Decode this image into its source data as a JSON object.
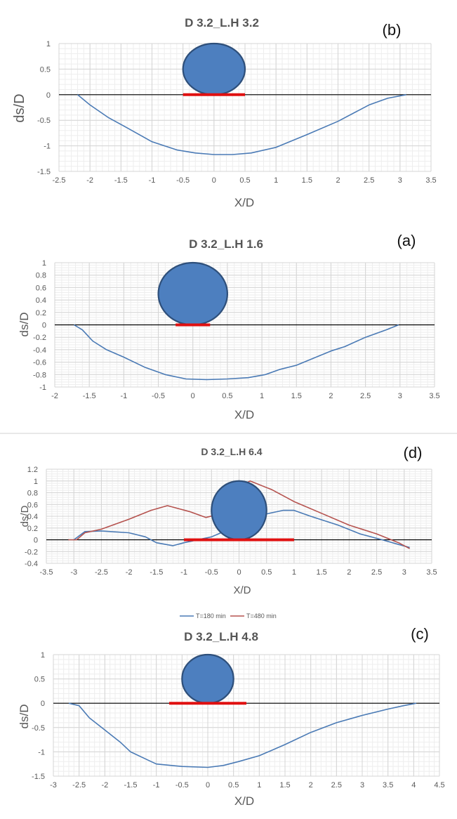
{
  "chart_data": [
    {
      "type": "line",
      "title": "D 3.2_L.H 3.2",
      "panel_label": "(b)",
      "xlabel": "X/D",
      "ylabel": "ds/D",
      "xlim": [
        -2.5,
        3.5
      ],
      "ylim": [
        -1.5,
        1
      ],
      "xticks": [
        -2.5,
        -2,
        -1.5,
        -1,
        -0.5,
        0,
        0.5,
        1,
        1.5,
        2,
        2.5,
        3,
        3.5
      ],
      "yticks": [
        -1.5,
        -1,
        -0.5,
        0,
        0.5,
        1
      ],
      "xtick_labels": [
        "-2.5",
        "-2",
        "-1.5",
        "-1",
        "-0.5",
        "0",
        "0.5",
        "1",
        "1.5",
        "2",
        "2.5",
        "3",
        "3.5"
      ],
      "ytick_labels": [
        "-1.5",
        "-1",
        "-0.5",
        "0",
        "0.5",
        "1"
      ],
      "pipe": {
        "center_x": 0,
        "center_y": 0.5,
        "diameter": 1
      },
      "mat": {
        "x_start": -0.5,
        "x_end": 0.5
      },
      "series": [
        {
          "name": "profile",
          "color": "#4a7ab5",
          "x": [
            -2.2,
            -2.0,
            -1.7,
            -1.4,
            -1.0,
            -0.6,
            -0.3,
            0.0,
            0.3,
            0.6,
            1.0,
            1.5,
            2.0,
            2.5,
            2.8,
            3.1
          ],
          "y": [
            0.0,
            -0.2,
            -0.45,
            -0.65,
            -0.92,
            -1.08,
            -1.14,
            -1.17,
            -1.17,
            -1.14,
            -1.03,
            -0.78,
            -0.52,
            -0.2,
            -0.07,
            0.0
          ]
        }
      ]
    },
    {
      "type": "line",
      "title": "D 3.2_L.H 1.6",
      "panel_label": "(a)",
      "xlabel": "X/D",
      "ylabel": "ds/D",
      "xlim": [
        -2,
        3.5
      ],
      "ylim": [
        -1,
        1
      ],
      "xticks": [
        -2,
        -1.5,
        -1,
        -0.5,
        0,
        0.5,
        1,
        1.5,
        2,
        2.5,
        3,
        3.5
      ],
      "yticks": [
        -1,
        -0.8,
        -0.6,
        -0.4,
        -0.2,
        0,
        0.2,
        0.4,
        0.6,
        0.8,
        1
      ],
      "xtick_labels": [
        "-2",
        "-1.5",
        "-1",
        "-0.5",
        "0",
        "0.5",
        "1",
        "1.5",
        "2",
        "2.5",
        "3",
        "3.5"
      ],
      "ytick_labels": [
        "-1",
        "-0.8",
        "-0.6",
        "-0.4",
        "-0.2",
        "0",
        "0.2",
        "0.4",
        "0.6",
        "0.8",
        "1"
      ],
      "pipe": {
        "center_x": 0,
        "center_y": 0.5,
        "diameter": 1
      },
      "mat": {
        "x_start": -0.25,
        "x_end": 0.25
      },
      "series": [
        {
          "name": "profile",
          "color": "#4a7ab5",
          "x": [
            -1.72,
            -1.6,
            -1.45,
            -1.25,
            -1.0,
            -0.7,
            -0.4,
            -0.1,
            0.2,
            0.5,
            0.8,
            1.05,
            1.25,
            1.5,
            2.0,
            2.2,
            2.5,
            2.8,
            2.98
          ],
          "y": [
            0.0,
            -0.08,
            -0.26,
            -0.4,
            -0.52,
            -0.68,
            -0.8,
            -0.87,
            -0.88,
            -0.87,
            -0.85,
            -0.8,
            -0.72,
            -0.65,
            -0.42,
            -0.35,
            -0.2,
            -0.08,
            0.0
          ]
        }
      ]
    },
    {
      "type": "line",
      "title": "D 3.2_L.H 6.4",
      "panel_label": "(d)",
      "xlabel": "X/D",
      "ylabel": "ds/D",
      "xlim": [
        -3.5,
        3.5
      ],
      "ylim": [
        -0.4,
        1.2
      ],
      "xticks": [
        -3.5,
        -3,
        -2.5,
        -2,
        -1.5,
        -1,
        -0.5,
        0,
        0.5,
        1,
        1.5,
        2,
        2.5,
        3,
        3.5
      ],
      "yticks": [
        -0.4,
        -0.2,
        0,
        0.2,
        0.4,
        0.6,
        0.8,
        1,
        1.2
      ],
      "xtick_labels": [
        "-3.5",
        "-3",
        "-2.5",
        "-2",
        "-1.5",
        "-1",
        "-0.5",
        "0",
        "0.5",
        "1",
        "1.5",
        "2",
        "2.5",
        "3",
        "3.5"
      ],
      "ytick_labels": [
        "-0.4",
        "-0.2",
        "0",
        "0.2",
        "0.4",
        "0.6",
        "0.8",
        "1",
        "1.2"
      ],
      "pipe": {
        "center_x": 0,
        "center_y": 0.5,
        "diameter": 1
      },
      "mat": {
        "x_start": -1,
        "x_end": 1
      },
      "series": [
        {
          "name": "T=180 min",
          "color": "#4a7ab5",
          "x": [
            -3.0,
            -2.8,
            -2.5,
            -2.0,
            -1.7,
            -1.5,
            -1.2,
            -1.0,
            -0.5,
            0.0,
            0.4,
            0.8,
            1.0,
            1.3,
            1.8,
            2.2,
            2.6,
            2.9,
            3.1
          ],
          "y": [
            0.0,
            0.14,
            0.15,
            0.12,
            0.05,
            -0.05,
            -0.1,
            -0.05,
            0.05,
            0.25,
            0.42,
            0.5,
            0.5,
            0.4,
            0.25,
            0.1,
            0.0,
            -0.08,
            -0.13
          ]
        }
      ],
      "series2": [
        {
          "name": "T=480 min",
          "color": "#b5524e",
          "x": [
            -3.1,
            -2.95,
            -2.8,
            -2.5,
            -2.0,
            -1.6,
            -1.3,
            -0.9,
            -0.6,
            -0.3,
            0.0,
            0.2,
            0.6,
            1.0,
            1.5,
            2.0,
            2.5,
            2.9,
            3.1
          ],
          "y": [
            0.0,
            0.0,
            0.12,
            0.18,
            0.35,
            0.5,
            0.58,
            0.48,
            0.38,
            0.45,
            0.9,
            1.0,
            0.85,
            0.65,
            0.45,
            0.25,
            0.1,
            -0.05,
            -0.15
          ]
        }
      ]
    },
    {
      "type": "line",
      "title": "D 3.2_L.H 4.8",
      "panel_label": "(c)",
      "xlabel": "X/D",
      "ylabel": "ds/D",
      "xlim": [
        -3,
        4.5
      ],
      "ylim": [
        -1.5,
        1
      ],
      "xticks": [
        -3,
        -2.5,
        -2,
        -1.5,
        -1,
        -0.5,
        0,
        0.5,
        1,
        1.5,
        2,
        2.5,
        3,
        3.5,
        4,
        4.5
      ],
      "yticks": [
        -1.5,
        -1,
        -0.5,
        0,
        0.5,
        1
      ],
      "xtick_labels": [
        "-3",
        "-2.5",
        "-2",
        "-1.5",
        "-1",
        "-0.5",
        "0",
        "0.5",
        "1",
        "1.5",
        "2",
        "2.5",
        "3",
        "3.5",
        "4",
        "4.5"
      ],
      "ytick_labels": [
        "-1.5",
        "-1",
        "-0.5",
        "0",
        "0.5",
        "1"
      ],
      "pipe": {
        "center_x": 0,
        "center_y": 0.5,
        "diameter": 1
      },
      "mat": {
        "x_start": -0.75,
        "x_end": 0.75
      },
      "series": [
        {
          "name": "profile",
          "color": "#4a7ab5",
          "x": [
            -2.7,
            -2.5,
            -2.3,
            -2.0,
            -1.7,
            -1.5,
            -1.2,
            -1.0,
            -0.5,
            0.0,
            0.3,
            0.6,
            1.0,
            1.5,
            2.0,
            2.5,
            3.0,
            3.5,
            3.8,
            4.05
          ],
          "y": [
            0.0,
            -0.05,
            -0.3,
            -0.55,
            -0.8,
            -1.0,
            -1.15,
            -1.25,
            -1.3,
            -1.32,
            -1.28,
            -1.2,
            -1.08,
            -0.85,
            -0.6,
            -0.4,
            -0.25,
            -0.12,
            -0.05,
            0.0
          ]
        }
      ]
    }
  ],
  "legend": {
    "items": [
      "T=180 min",
      "T=480 min"
    ]
  }
}
